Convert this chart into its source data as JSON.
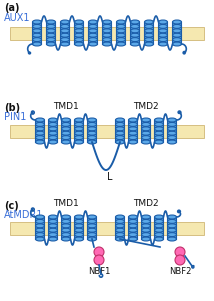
{
  "bg_color": "#ffffff",
  "membrane_color": "#f5e8b0",
  "membrane_edge_color": "#c8aa60",
  "helix_fill": "#5ba8e8",
  "helix_edge": "#1a5ca8",
  "loop_color": "#1a5ca8",
  "nbf_fill": "#ff69b4",
  "nbf_edge": "#c0306a",
  "label_blue": "#3a6fd8",
  "label_black": "#111111",
  "panel_a": "(a)",
  "panel_b": "(b)",
  "panel_c": "(c)",
  "aux1": "AUX1",
  "pin1": "PIN1",
  "atmdr1": "AtMDR1",
  "tmd1": "TMD1",
  "tmd2": "TMD2",
  "l_lbl": "L",
  "nbf1": "NBF1",
  "nbf2": "NBF2"
}
